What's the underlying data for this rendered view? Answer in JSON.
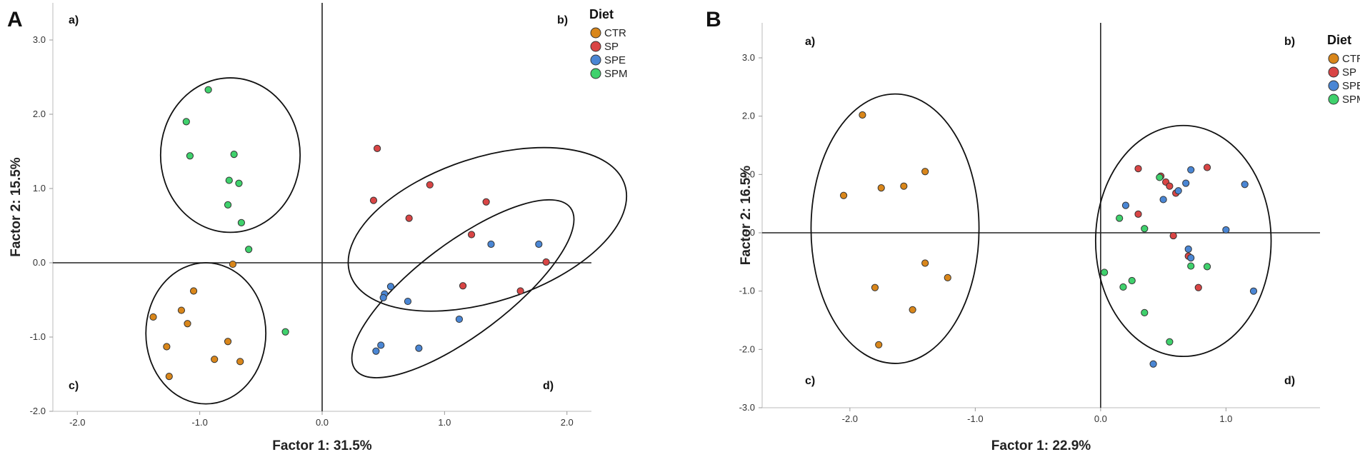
{
  "colors": {
    "CTR": "#d9861a",
    "SP": "#d94545",
    "SPE": "#4a86d4",
    "SPM": "#3fd16c"
  },
  "chart_data": [
    {
      "type": "scatter",
      "panel": "A",
      "xlabel": "Factor 1: 31.5%",
      "ylabel": "Factor 2: 15.5%",
      "xlim": [
        -2.2,
        2.2
      ],
      "ylim": [
        -2.0,
        3.5
      ],
      "xticks": [
        "-2.0",
        "-1.0",
        "0.0",
        "1.0",
        "2.0"
      ],
      "yticks": [
        "-2.0",
        "-1.0",
        "0.0",
        "1.0",
        "2.0",
        "3.0"
      ],
      "legend_title": "Diet",
      "legend_position": "top-right",
      "quadrant_labels": [
        "a)",
        "b)",
        "c)",
        "d)"
      ],
      "series": [
        {
          "name": "CTR",
          "points": [
            [
              -1.38,
              -0.73
            ],
            [
              -1.15,
              -0.64
            ],
            [
              -1.1,
              -0.82
            ],
            [
              -1.05,
              -0.38
            ],
            [
              -1.27,
              -1.13
            ],
            [
              -0.77,
              -1.06
            ],
            [
              -0.88,
              -1.3
            ],
            [
              -0.67,
              -1.33
            ],
            [
              -1.25,
              -1.53
            ],
            [
              -0.73,
              -0.02
            ]
          ]
        },
        {
          "name": "SP",
          "points": [
            [
              0.45,
              1.54
            ],
            [
              0.88,
              1.05
            ],
            [
              0.42,
              0.84
            ],
            [
              0.71,
              0.6
            ],
            [
              1.34,
              0.82
            ],
            [
              1.22,
              0.38
            ],
            [
              1.83,
              0.01
            ],
            [
              1.15,
              -0.31
            ],
            [
              1.62,
              -0.38
            ]
          ]
        },
        {
          "name": "SPE",
          "points": [
            [
              1.38,
              0.25
            ],
            [
              1.77,
              0.25
            ],
            [
              0.56,
              -0.32
            ],
            [
              0.51,
              -0.42
            ],
            [
              0.5,
              -0.47
            ],
            [
              0.7,
              -0.52
            ],
            [
              1.12,
              -0.76
            ],
            [
              0.48,
              -1.11
            ],
            [
              0.44,
              -1.19
            ],
            [
              0.79,
              -1.15
            ]
          ]
        },
        {
          "name": "SPM",
          "points": [
            [
              -0.93,
              2.33
            ],
            [
              -1.11,
              1.9
            ],
            [
              -1.08,
              1.44
            ],
            [
              -0.72,
              1.46
            ],
            [
              -0.76,
              1.11
            ],
            [
              -0.68,
              1.07
            ],
            [
              -0.77,
              0.78
            ],
            [
              -0.66,
              0.54
            ],
            [
              -0.6,
              0.18
            ],
            [
              -0.3,
              -0.93
            ]
          ]
        }
      ],
      "ellipses": [
        {
          "cx": -0.75,
          "cy": 1.45,
          "rx": 0.57,
          "ry": 1.04,
          "angle": 0
        },
        {
          "cx": -0.95,
          "cy": -0.95,
          "rx": 0.49,
          "ry": 0.95,
          "angle": 0
        },
        {
          "cx": 1.35,
          "cy": 0.45,
          "rx": 1.18,
          "ry": 0.97,
          "angle": -18
        },
        {
          "cx": 1.15,
          "cy": -0.35,
          "rx": 1.1,
          "ry": 0.62,
          "angle": -37
        }
      ]
    },
    {
      "type": "scatter",
      "panel": "B",
      "xlabel": "Factor 1: 22.9%",
      "ylabel": "Factor 2: 16.5%",
      "xlim": [
        -2.7,
        1.75
      ],
      "ylim": [
        -3.0,
        3.6
      ],
      "xticks": [
        "-2.0",
        "-1.0",
        "0.0",
        "1.0"
      ],
      "yticks": [
        "-3.0",
        "-2.0",
        "-1.0",
        "0.0",
        "1.0",
        "2.0",
        "3.0"
      ],
      "legend_title": "Diet",
      "legend_position": "top-right",
      "quadrant_labels": [
        "a)",
        "b)",
        "c)",
        "d)"
      ],
      "series": [
        {
          "name": "CTR",
          "points": [
            [
              -1.9,
              2.02
            ],
            [
              -2.05,
              0.64
            ],
            [
              -1.75,
              0.77
            ],
            [
              -1.57,
              0.8
            ],
            [
              -1.4,
              1.05
            ],
            [
              -1.4,
              -0.52
            ],
            [
              -1.22,
              -0.77
            ],
            [
              -1.8,
              -0.94
            ],
            [
              -1.5,
              -1.32
            ],
            [
              -1.77,
              -1.92
            ]
          ]
        },
        {
          "name": "SP",
          "points": [
            [
              0.3,
              1.1
            ],
            [
              0.85,
              1.12
            ],
            [
              0.48,
              0.97
            ],
            [
              0.52,
              0.87
            ],
            [
              0.55,
              0.8
            ],
            [
              0.6,
              0.68
            ],
            [
              0.3,
              0.32
            ],
            [
              0.58,
              -0.05
            ],
            [
              0.7,
              -0.4
            ],
            [
              0.78,
              -0.94
            ]
          ]
        },
        {
          "name": "SPE",
          "points": [
            [
              0.72,
              1.08
            ],
            [
              1.15,
              0.83
            ],
            [
              0.68,
              0.85
            ],
            [
              0.62,
              0.72
            ],
            [
              0.5,
              0.57
            ],
            [
              0.2,
              0.47
            ],
            [
              1.0,
              0.05
            ],
            [
              0.7,
              -0.28
            ],
            [
              0.72,
              -0.43
            ],
            [
              1.22,
              -1.0
            ],
            [
              0.42,
              -2.25
            ]
          ]
        },
        {
          "name": "SPM",
          "points": [
            [
              0.47,
              0.95
            ],
            [
              0.15,
              0.25
            ],
            [
              0.35,
              0.07
            ],
            [
              0.72,
              -0.57
            ],
            [
              0.85,
              -0.58
            ],
            [
              0.03,
              -0.68
            ],
            [
              0.18,
              -0.93
            ],
            [
              0.25,
              -0.82
            ],
            [
              0.35,
              -1.37
            ],
            [
              0.55,
              -1.87
            ]
          ]
        }
      ],
      "ellipses": [
        {
          "cx": -1.64,
          "cy": 0.07,
          "rx": 0.67,
          "ry": 2.31,
          "angle": 0
        },
        {
          "cx": 0.66,
          "cy": -0.14,
          "rx": 0.7,
          "ry": 1.98,
          "angle": 0
        }
      ]
    }
  ]
}
